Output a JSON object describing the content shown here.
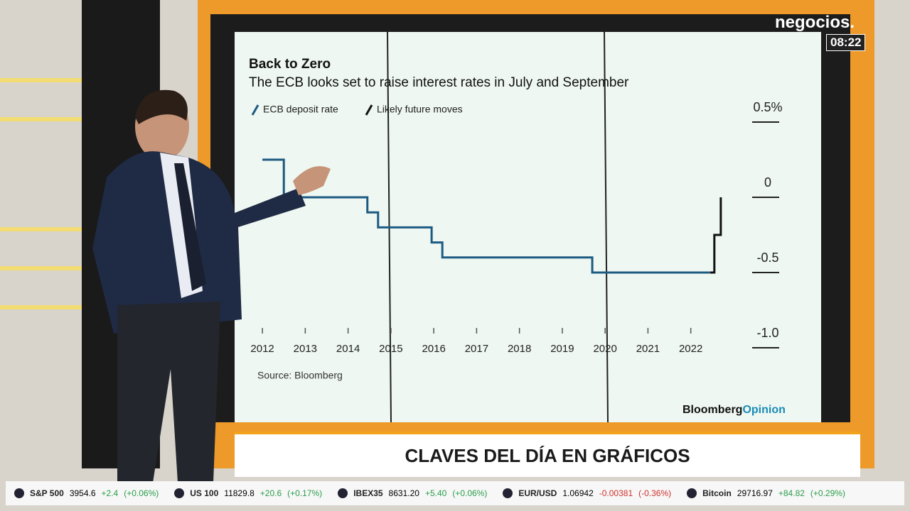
{
  "logo": "negocios.",
  "clock": "08:22",
  "chart_data": {
    "type": "line",
    "title": "Back to Zero",
    "subtitle": "The ECB looks set to raise interest rates in July and September",
    "source": "Source: Bloomberg",
    "series": [
      {
        "name": "ECB deposit rate",
        "color": "#1d5a82",
        "x": [
          2012.0,
          2012.5,
          2012.5,
          2014.45,
          2014.45,
          2014.7,
          2014.7,
          2015.95,
          2015.95,
          2016.2,
          2016.2,
          2019.7,
          2019.7,
          2022.45
        ],
        "values": [
          0.25,
          0.25,
          0,
          0,
          -0.1,
          -0.1,
          -0.2,
          -0.2,
          -0.3,
          -0.3,
          -0.4,
          -0.4,
          -0.5,
          -0.5
        ]
      },
      {
        "name": "Likely future moves",
        "color": "#111111",
        "x": [
          2022.45,
          2022.55,
          2022.55,
          2022.7,
          2022.7
        ],
        "values": [
          -0.5,
          -0.5,
          -0.25,
          -0.25,
          0
        ]
      }
    ],
    "xlim": [
      2011.6,
      2023.3
    ],
    "xticks": [
      2012,
      2013,
      2014,
      2015,
      2016,
      2017,
      2018,
      2019,
      2020,
      2021,
      2022
    ],
    "ylim": [
      -1.0,
      0.5
    ],
    "yticks": [
      {
        "value": 0.5,
        "label": "0.5%"
      },
      0,
      -0.5,
      {
        "value": -1.0,
        "label": "-1.0"
      }
    ],
    "grid": false
  },
  "brand": {
    "name": "Bloomberg",
    "suffix": "Opinion"
  },
  "headline": "CLAVES DEL DÍA EN GRÁFICOS",
  "ticker": [
    {
      "name": "S&P 500",
      "price": "3954.6",
      "change": "+2.4",
      "percent": "(+0.06%)"
    },
    {
      "name": "US 100",
      "price": "11829.8",
      "change": "+20.6",
      "percent": "(+0.17%)"
    },
    {
      "name": "IBEX35",
      "price": "8631.20",
      "change": "+5.40",
      "percent": "(+0.06%)"
    },
    {
      "name": "EUR/USD",
      "price": "1.06942",
      "change": "-0.00381",
      "percent": "(-0.36%)"
    },
    {
      "name": "Bitcoin",
      "price": "29716.97",
      "change": "+84.82",
      "percent": "(+0.29%)"
    }
  ]
}
